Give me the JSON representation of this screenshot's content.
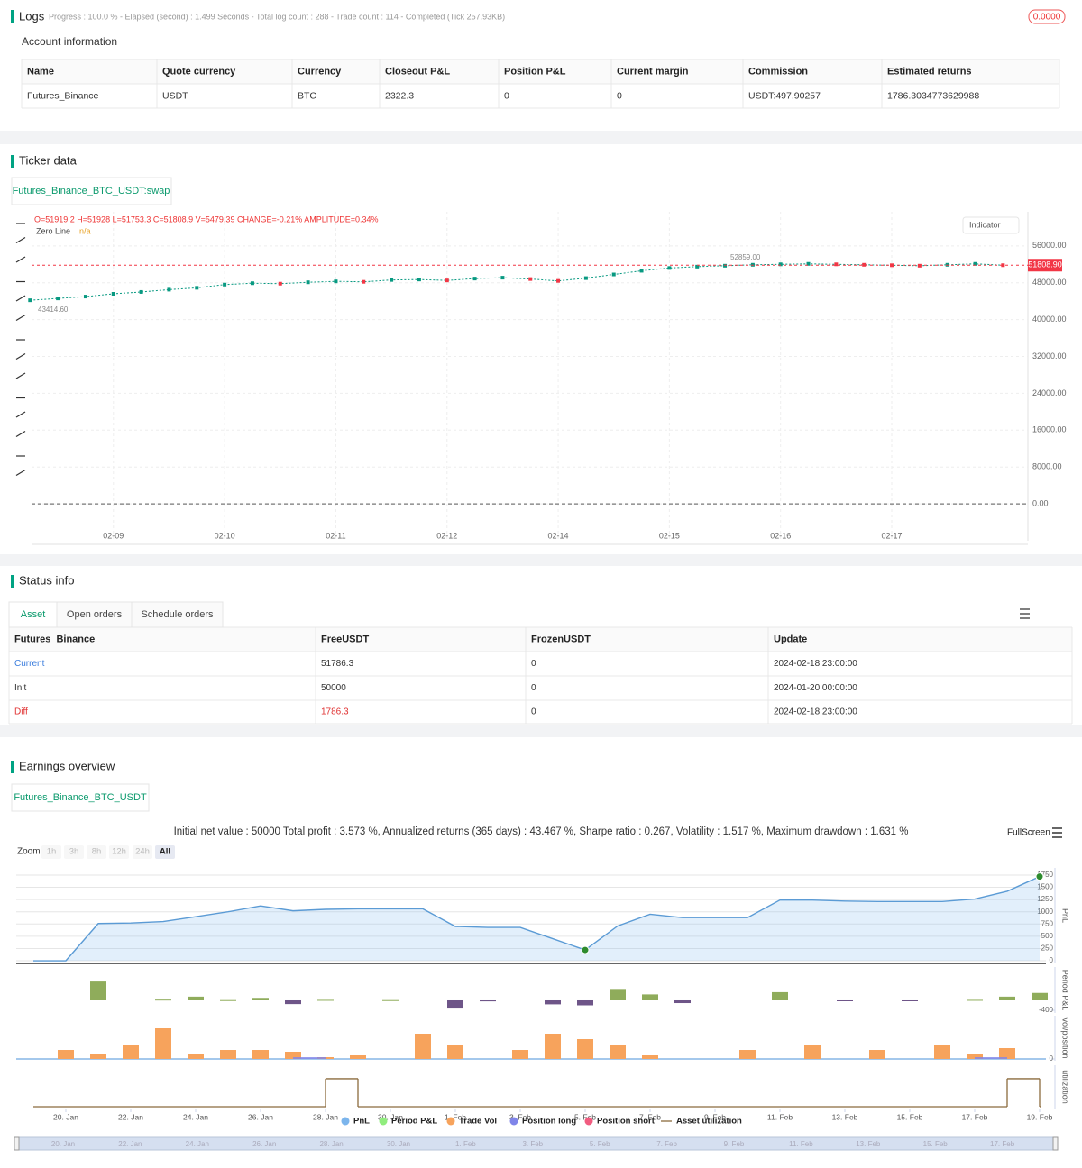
{
  "logs": {
    "title": "Logs",
    "status": "Progress : 100.0 % - Elapsed (second) : 1.499  Seconds - Total log count : 288 - Trade count : 114 - Completed (Tick 257.93KB)",
    "badge": "0.0000"
  },
  "account": {
    "title": "Account information",
    "columns": [
      "Name",
      "Quote currency",
      "Currency",
      "Closeout P&L",
      "Position P&L",
      "Current margin",
      "Commission",
      "Estimated returns"
    ],
    "rows": [
      [
        "Futures_Binance",
        "USDT",
        "BTC",
        "2322.3",
        "0",
        "0",
        "USDT:497.90257",
        "1786.3034773629988"
      ]
    ]
  },
  "ticker": {
    "title": "Ticker data",
    "tab": "Futures_Binance_BTC_USDT:swap",
    "ohlc": "O=51919.2 H=51928 L=51753.3 C=51808.9 V=5479.39 CHANGE=-0.21% AMPLITUDE=0.34%",
    "zero_line": "Zero Line",
    "zero_value": "n/a",
    "indicator": "Indicator",
    "low_mark": "43414.60",
    "high_mark": "52859.00",
    "last_price": "51808.90"
  },
  "status": {
    "title": "Status info",
    "tabs": [
      "Asset",
      "Open orders",
      "Schedule orders"
    ],
    "columns": [
      "Futures_Binance",
      "FreeUSDT",
      "FrozenUSDT",
      "Update"
    ],
    "rows": [
      [
        "Current",
        "51786.3",
        "0",
        "2024-02-18 23:00:00"
      ],
      [
        "Init",
        "50000",
        "0",
        "2024-01-20 00:00:00"
      ],
      [
        "Diff",
        "1786.3",
        "0",
        "2024-02-18 23:00:00"
      ]
    ]
  },
  "earnings": {
    "title": "Earnings overview",
    "tab": "Futures_Binance_BTC_USDT",
    "summary": "Initial net value : 50000 Total profit : 3.573 %, Annualized returns (365 days) : 43.467 %, Sharpe ratio : 0.267, Volatility : 1.517 %, Maximum drawdown : 1.631 %",
    "fullscreen": "FullScreen",
    "zoom": "Zoom",
    "zoom_buttons": [
      "1h",
      "3h",
      "8h",
      "12h",
      "24h",
      "All"
    ],
    "navigator": [
      "20. Jan",
      "22. Jan",
      "24. Jan",
      "26. Jan",
      "28. Jan",
      "30. Jan",
      "1. Feb",
      "3. Feb",
      "5. Feb",
      "7. Feb",
      "9. Feb",
      "11. Feb",
      "13. Feb",
      "15. Feb",
      "17. Feb"
    ]
  },
  "chart_data": [
    {
      "type": "candle-line",
      "color": "#089981",
      "down_color": "#f23645",
      "categories": [
        null,
        null,
        null,
        "02-09",
        null,
        null,
        null,
        "02-10",
        null,
        null,
        null,
        "02-11",
        null,
        null,
        null,
        "02-12",
        null,
        null,
        null,
        "02-14",
        null,
        null,
        null,
        "02-15",
        null,
        null,
        null,
        "02-16",
        null,
        null,
        null,
        "02-17",
        null,
        null,
        null,
        null
      ],
      "values": [
        44200,
        44600,
        45000,
        45600,
        46000,
        46500,
        46900,
        47600,
        47900,
        47800,
        48100,
        48300,
        48200,
        48600,
        48700,
        48500,
        48900,
        49100,
        48800,
        48400,
        49000,
        49800,
        50600,
        51200,
        51500,
        51700,
        51900,
        52000,
        52100,
        52000,
        51900,
        51800,
        51700,
        51900,
        52100,
        51808.9
      ],
      "ylim": [
        -8000,
        63400
      ],
      "yticks": [
        {
          "value": 0,
          "label": "0.00"
        },
        {
          "value": 8000,
          "label": "8000.00"
        },
        {
          "value": 16000,
          "label": "16000.00"
        },
        {
          "value": 24000,
          "label": "24000.00"
        },
        {
          "value": 32000,
          "label": "32000.00"
        },
        {
          "value": 40000,
          "label": "40000.00"
        },
        {
          "value": 48000,
          "label": "48000.00"
        },
        {
          "value": 56000,
          "label": "56000.00"
        }
      ],
      "grid": true
    },
    {
      "type": "panels",
      "categories": [
        null,
        "20. Jan",
        null,
        "22. Jan",
        null,
        "24. Jan",
        null,
        "26. Jan",
        null,
        "28. Jan",
        null,
        "30. Jan",
        null,
        "1. Feb",
        null,
        "3. Feb",
        null,
        "5. Feb",
        null,
        "7. Feb",
        null,
        "9. Feb",
        null,
        "11. Feb",
        null,
        "13. Feb",
        null,
        "15. Feb",
        null,
        "17. Feb",
        null,
        "19. Feb"
      ],
      "panels": [
        {
          "title": "PnL",
          "ylim": [
            -55,
            1897
          ],
          "yticks": [
            0,
            250,
            500,
            750,
            1000,
            1250,
            1500,
            1750
          ]
        },
        {
          "title": "Period P&L",
          "ylim": [
            -509,
            1345
          ],
          "yticks": [
            -400
          ]
        },
        {
          "title": "vol/position",
          "ylim": [
            -1,
            24
          ],
          "yticks": [
            0
          ]
        },
        {
          "title": "utilization",
          "ylim": [
            -0.065,
            1.48
          ]
        }
      ],
      "series": [
        {
          "name": "PnL",
          "color": "#7cb5ec",
          "kind": "area",
          "panel": 0,
          "values": [
            0,
            0,
            760,
            770,
            800,
            900,
            1000,
            1120,
            1020,
            1050,
            1060,
            1060,
            1060,
            700,
            680,
            680,
            450,
            220,
            710,
            950,
            880,
            880,
            880,
            1240,
            1240,
            1220,
            1210,
            1210,
            1210,
            1260,
            1420,
            1720
          ]
        },
        {
          "name": "Period P&L",
          "color": "#90ed7d",
          "positive_color": "#8fac5b",
          "negative_color": "#6e5588",
          "kind": "column",
          "panel": 1,
          "values": [
            null,
            null,
            760,
            null,
            30,
            150,
            10,
            100,
            -150,
            20,
            null,
            10,
            null,
            -330,
            -40,
            null,
            -160,
            -200,
            460,
            240,
            -110,
            null,
            null,
            330,
            null,
            -30,
            null,
            -20,
            null,
            20,
            150,
            300
          ]
        },
        {
          "name": "Trade Vol",
          "color": "#f7a35c",
          "kind": "column",
          "panel": 2,
          "values": [
            null,
            5,
            3,
            8,
            17,
            3,
            5,
            5,
            4,
            1,
            2,
            null,
            14,
            8,
            null,
            5,
            14,
            11,
            8,
            2,
            null,
            null,
            5,
            null,
            8,
            null,
            5,
            null,
            8,
            3,
            6,
            null
          ]
        },
        {
          "name": "Position long",
          "color": "#8085e9",
          "kind": "flat",
          "panel": 2,
          "values": [
            null,
            null,
            null,
            null,
            null,
            null,
            null,
            null,
            1,
            null,
            null,
            null,
            null,
            null,
            null,
            null,
            null,
            null,
            null,
            null,
            null,
            null,
            null,
            null,
            null,
            null,
            null,
            null,
            null,
            1,
            null,
            null
          ]
        },
        {
          "name": "Position short",
          "color": "#f15c80",
          "kind": "flat",
          "panel": 2,
          "values": [
            null,
            null,
            null,
            null,
            null,
            null,
            null,
            null,
            null,
            null,
            null,
            null,
            null,
            null,
            null,
            null,
            null,
            null,
            null,
            null,
            null,
            null,
            null,
            null,
            null,
            null,
            null,
            null,
            null,
            null,
            null,
            null
          ]
        },
        {
          "name": "Asset utilization",
          "color": "#8b6b3d",
          "kind": "step",
          "panel": 3,
          "values": [
            0,
            0,
            0,
            0,
            0,
            0,
            0,
            0,
            0,
            1,
            0,
            0,
            0,
            0,
            0,
            0,
            0,
            0,
            0,
            0,
            0,
            0,
            0,
            0,
            0,
            0,
            0,
            0,
            0,
            0,
            1,
            0
          ]
        }
      ]
    }
  ]
}
